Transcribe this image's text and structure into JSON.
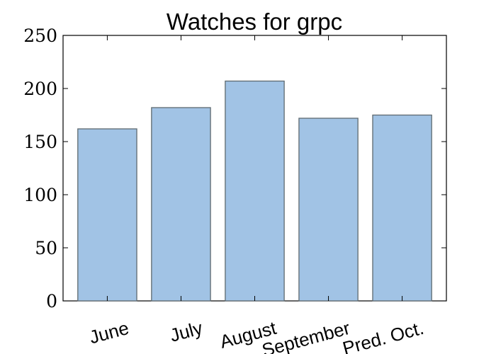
{
  "chart_data": {
    "type": "bar",
    "title": "Watches for grpc",
    "xlabel": "",
    "ylabel": "",
    "categories": [
      "June",
      "July",
      "August",
      "September",
      "Pred. Oct."
    ],
    "values": [
      162,
      182,
      207,
      172,
      175
    ],
    "ylim": [
      0,
      250
    ],
    "yticks": [
      0,
      50,
      100,
      150,
      200,
      250
    ],
    "grid": false,
    "legend": "none",
    "bar_color": "#a1c3e5",
    "bar_edge_color": "#5f6a70"
  }
}
